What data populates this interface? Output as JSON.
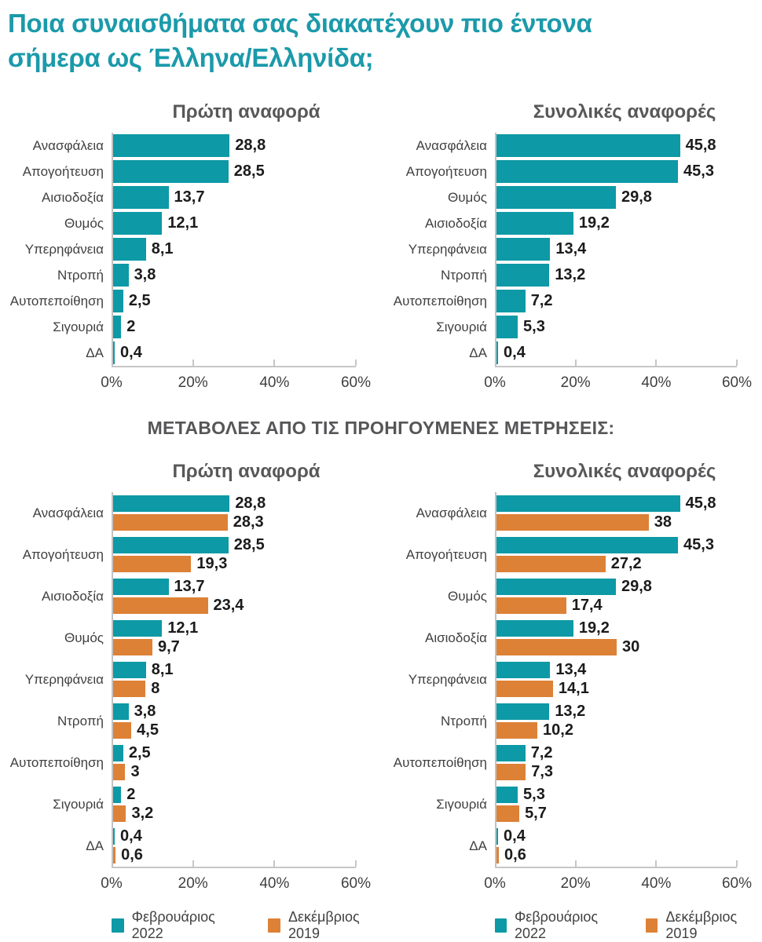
{
  "page": {
    "title": "Ποια συναισθήματα σας διακατέχουν πιο έντονα σήμερα ως Έλληνα/Ελληνίδα;",
    "section_heading": "ΜΕΤΑΒΟΛΕΣ ΑΠΟ ΤΙΣ ΠΡΟΗΓΟΥΜΕΝΕΣ ΜΕΤΡΗΣΕΙΣ:"
  },
  "colors": {
    "teal": "#0d99a5",
    "orange": "#dd8136",
    "title_teal": "#1b9aaa",
    "heading_gray": "#58585a"
  },
  "axis": {
    "tick_values": [
      0,
      20,
      40,
      60
    ],
    "tick_labels": [
      "0%",
      "20%",
      "40%",
      "60%"
    ],
    "max": 60
  },
  "legend": {
    "items": [
      {
        "label": "Φεβρουάριος 2022",
        "color_key": "teal"
      },
      {
        "label": "Δεκέμβριος 2019",
        "color_key": "orange"
      }
    ]
  },
  "chart_data": [
    {
      "id": "first-mention",
      "type": "bar",
      "orientation": "horizontal",
      "title": "Πρώτη αναφορά",
      "xlim": [
        0,
        60
      ],
      "grid": false,
      "show_legend": false,
      "categories": [
        "Ανασφάλεια",
        "Απογοήτευση",
        "Αισιοδοξία",
        "Θυμός",
        "Υπερηφάνεια",
        "Ντροπή",
        "Αυτοπεποίθηση",
        "Σιγουριά",
        "ΔΑ"
      ],
      "series": [
        {
          "name": "Φεβρουάριος 2022",
          "color_key": "teal",
          "values": [
            28.8,
            28.5,
            13.7,
            12.1,
            8.1,
            3.8,
            2.5,
            2,
            0.4
          ],
          "labels": [
            "28,8",
            "28,5",
            "13,7",
            "12,1",
            "8,1",
            "3,8",
            "2,5",
            "2",
            "0,4"
          ]
        }
      ]
    },
    {
      "id": "total-mentions",
      "type": "bar",
      "orientation": "horizontal",
      "title": "Συνολικές αναφορές",
      "xlim": [
        0,
        60
      ],
      "grid": false,
      "show_legend": false,
      "categories": [
        "Ανασφάλεια",
        "Απογοήτευση",
        "Θυμός",
        "Αισιοδοξία",
        "Υπερηφάνεια",
        "Ντροπή",
        "Αυτοπεποίθηση",
        "Σιγουριά",
        "ΔΑ"
      ],
      "series": [
        {
          "name": "Φεβρουάριος 2022",
          "color_key": "teal",
          "values": [
            45.8,
            45.3,
            29.8,
            19.2,
            13.4,
            13.2,
            7.2,
            5.3,
            0.4
          ],
          "labels": [
            "45,8",
            "45,3",
            "29,8",
            "19,2",
            "13,4",
            "13,2",
            "7,2",
            "5,3",
            "0,4"
          ]
        }
      ]
    },
    {
      "id": "first-mention-comparison",
      "type": "bar",
      "orientation": "horizontal",
      "title": "Πρώτη αναφορά",
      "xlim": [
        0,
        60
      ],
      "grid": false,
      "show_legend": true,
      "categories": [
        "Ανασφάλεια",
        "Απογοήτευση",
        "Αισιοδοξία",
        "Θυμός",
        "Υπερηφάνεια",
        "Ντροπή",
        "Αυτοπεποίθηση",
        "Σιγουριά",
        "ΔΑ"
      ],
      "series": [
        {
          "name": "Φεβρουάριος 2022",
          "color_key": "teal",
          "values": [
            28.8,
            28.5,
            13.7,
            12.1,
            8.1,
            3.8,
            2.5,
            2,
            0.4
          ],
          "labels": [
            "28,8",
            "28,5",
            "13,7",
            "12,1",
            "8,1",
            "3,8",
            "2,5",
            "2",
            "0,4"
          ]
        },
        {
          "name": "Δεκέμβριος 2019",
          "color_key": "orange",
          "values": [
            28.3,
            19.3,
            23.4,
            9.7,
            8,
            4.5,
            3,
            3.2,
            0.6
          ],
          "labels": [
            "28,3",
            "19,3",
            "23,4",
            "9,7",
            "8",
            "4,5",
            "3",
            "3,2",
            "0,6"
          ]
        }
      ]
    },
    {
      "id": "total-mentions-comparison",
      "type": "bar",
      "orientation": "horizontal",
      "title": "Συνολικές αναφορές",
      "xlim": [
        0,
        60
      ],
      "grid": false,
      "show_legend": true,
      "categories": [
        "Ανασφάλεια",
        "Απογοήτευση",
        "Θυμός",
        "Αισιοδοξία",
        "Υπερηφάνεια",
        "Ντροπή",
        "Αυτοπεποίθηση",
        "Σιγουριά",
        "ΔΑ"
      ],
      "series": [
        {
          "name": "Φεβρουάριος 2022",
          "color_key": "teal",
          "values": [
            45.8,
            45.3,
            29.8,
            19.2,
            13.4,
            13.2,
            7.2,
            5.3,
            0.4
          ],
          "labels": [
            "45,8",
            "45,3",
            "29,8",
            "19,2",
            "13,4",
            "13,2",
            "7,2",
            "5,3",
            "0,4"
          ]
        },
        {
          "name": "Δεκέμβριος 2019",
          "color_key": "orange",
          "values": [
            38,
            27.2,
            17.4,
            30,
            14.1,
            10.2,
            7.3,
            5.7,
            0.6
          ],
          "labels": [
            "38",
            "27,2",
            "17,4",
            "30",
            "14,1",
            "10,2",
            "7,3",
            "5,7",
            "0,6"
          ]
        }
      ]
    }
  ]
}
